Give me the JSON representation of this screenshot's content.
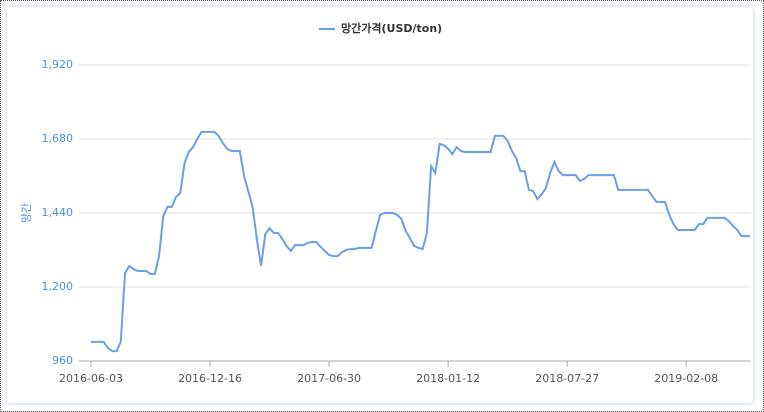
{
  "chart_data": {
    "type": "line",
    "legend_label": "망간가격(USD/ton)",
    "y_axis_label": "망간",
    "categories": [
      "2016-06-03",
      null,
      null,
      null,
      null,
      null,
      null,
      null,
      null,
      null,
      null,
      null,
      null,
      null,
      null,
      null,
      null,
      null,
      null,
      null,
      null,
      null,
      null,
      null,
      null,
      null,
      null,
      null,
      "2016-12-16",
      null,
      null,
      null,
      null,
      null,
      null,
      null,
      null,
      null,
      null,
      null,
      null,
      null,
      null,
      null,
      null,
      null,
      null,
      null,
      null,
      null,
      null,
      null,
      null,
      null,
      null,
      null,
      "2017-06-30",
      null,
      null,
      null,
      null,
      null,
      null,
      null,
      null,
      null,
      null,
      null,
      null,
      null,
      null,
      null,
      null,
      null,
      null,
      null,
      null,
      null,
      null,
      null,
      null,
      null,
      null,
      null,
      "2018-01-12",
      null,
      null,
      null,
      null,
      null,
      null,
      null,
      null,
      null,
      null,
      null,
      null,
      null,
      null,
      null,
      null,
      null,
      null,
      null,
      null,
      null,
      null,
      null,
      null,
      null,
      null,
      null,
      "2018-07-27",
      null,
      null,
      null,
      null,
      null,
      null,
      null,
      null,
      null,
      null,
      null,
      null,
      null,
      null,
      null,
      null,
      null,
      null,
      null,
      null,
      null,
      null,
      null,
      null,
      null,
      null,
      null,
      "2019-02-08",
      null,
      null,
      null,
      null,
      null,
      null,
      null,
      null,
      null,
      null,
      null,
      null,
      null,
      null,
      null
    ],
    "series": [
      {
        "name": "망간가격(USD/ton)",
        "color": "#6a9ee8",
        "values": [
          1022,
          1022,
          1022,
          1022,
          1002,
          992,
          992,
          1022,
          1245,
          1268,
          1258,
          1252,
          1252,
          1252,
          1242,
          1242,
          1300,
          1430,
          1460,
          1460,
          1492,
          1505,
          1602,
          1638,
          1654,
          1680,
          1703,
          1703,
          1703,
          1703,
          1690,
          1667,
          1648,
          1641,
          1641,
          1641,
          1560,
          1511,
          1460,
          1356,
          1268,
          1372,
          1391,
          1375,
          1375,
          1356,
          1333,
          1317,
          1336,
          1336,
          1336,
          1343,
          1346,
          1346,
          1330,
          1317,
          1304,
          1300,
          1300,
          1313,
          1320,
          1323,
          1323,
          1327,
          1327,
          1327,
          1327,
          1382,
          1434,
          1440,
          1440,
          1440,
          1434,
          1421,
          1382,
          1359,
          1333,
          1327,
          1323,
          1375,
          1592,
          1570,
          1664,
          1660,
          1648,
          1631,
          1654,
          1641,
          1638,
          1638,
          1638,
          1638,
          1638,
          1638,
          1638,
          1690,
          1690,
          1690,
          1674,
          1641,
          1618,
          1576,
          1576,
          1515,
          1511,
          1485,
          1501,
          1521,
          1570,
          1605,
          1576,
          1563,
          1563,
          1563,
          1563,
          1544,
          1550,
          1563,
          1563,
          1563,
          1563,
          1563,
          1563,
          1563,
          1515,
          1515,
          1515,
          1515,
          1515,
          1515,
          1515,
          1515,
          1495,
          1476,
          1476,
          1476,
          1434,
          1404,
          1385,
          1385,
          1385,
          1385,
          1385,
          1404,
          1404,
          1424,
          1424,
          1424,
          1424,
          1424,
          1414,
          1398,
          1385,
          1365,
          1365,
          1365
        ]
      }
    ],
    "ylim": [
      960,
      1920
    ],
    "yticks": [
      960,
      {
        "value": 1200,
        "label": "1,200"
      },
      {
        "value": 1440,
        "label": "1,440"
      },
      {
        "value": 1680,
        "label": "1,680"
      },
      {
        "value": 1920,
        "label": "1,920"
      }
    ],
    "grid": true
  }
}
